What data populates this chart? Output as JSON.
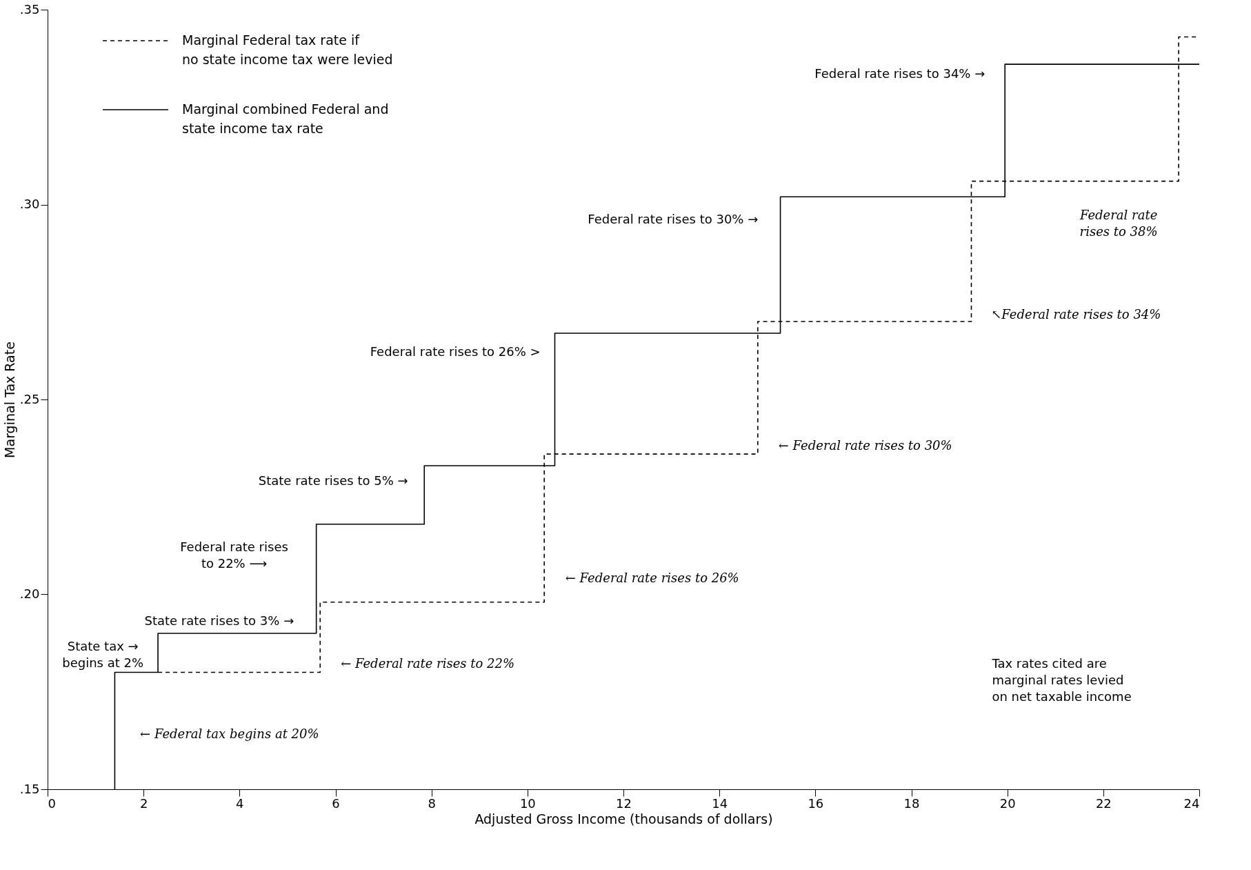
{
  "chart_data": {
    "type": "step",
    "xlabel": "Adjusted Gross Income (thousands of dollars)",
    "ylabel": "Marginal Tax Rate",
    "xlim": [
      0,
      24
    ],
    "xticks": [
      0,
      2,
      4,
      6,
      8,
      10,
      12,
      14,
      16,
      18,
      20,
      22,
      24
    ],
    "ylim": [
      0.15,
      0.35
    ],
    "yticks": [
      {
        "value": 0.15,
        "label": ".15"
      },
      {
        "value": 0.2,
        "label": ".20"
      },
      {
        "value": 0.25,
        "label": ".25"
      },
      {
        "value": 0.3,
        "label": ".30"
      },
      {
        "value": 0.35,
        "label": ".35"
      }
    ],
    "grid": false,
    "legend": "top left",
    "series": [
      {
        "name": "Marginal Federal tax rate if\nno state income tax were levied",
        "color": "#000000",
        "line_style": "dashed",
        "x": [
          2.3,
          5.68,
          10.35,
          14.8,
          19.25,
          23.57,
          24
        ],
        "values": [
          0.18,
          0.198,
          0.236,
          0.27,
          0.306,
          0.343,
          0.343
        ]
      },
      {
        "name": "Marginal combined Federal and\nstate income tax rate",
        "color": "#000000",
        "line_style": "solid",
        "x": [
          1.4,
          1.4,
          2.3,
          5.6,
          7.85,
          10.57,
          15.27,
          19.95,
          24
        ],
        "values": [
          0.15,
          0.18,
          0.19,
          0.218,
          0.233,
          0.267,
          0.302,
          0.336,
          0.336
        ]
      }
    ],
    "annotations": [
      "Federal rate rises to 34% →",
      "Federal rate rises to 30% →",
      "Federal rate rises to 26% >",
      "State rate rises to 5% →",
      "Federal rate rises\nto 22%         ⟶",
      "State rate rises to 3% →",
      "State tax  →\nbegins at 2%",
      "← Federal tax begins at 20%",
      "← Federal rate rises to 22%",
      "← Federal rate rises to 26%",
      "← Federal rate rises to 30%",
      "↖Federal rate rises to 34%",
      "Federal rate\nrises to 38%",
      "Tax rates cited are\nmarginal rates levied\non net taxable income"
    ]
  }
}
